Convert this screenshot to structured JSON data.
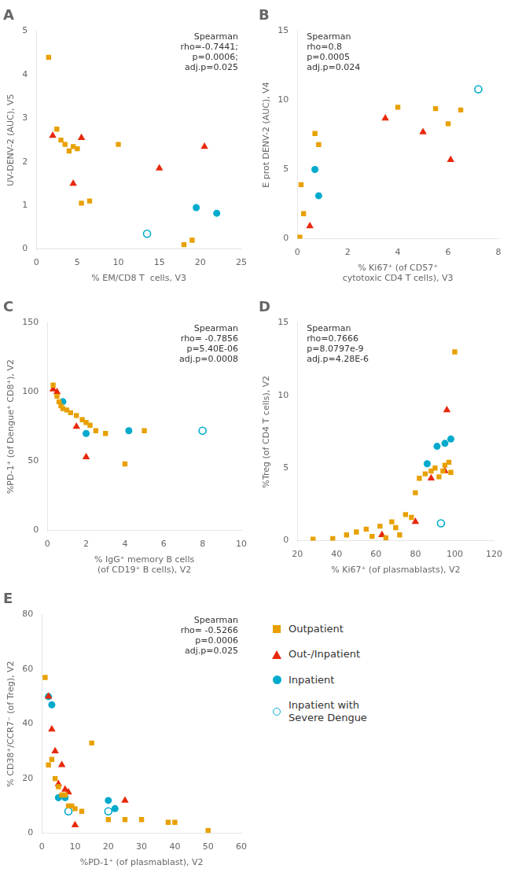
{
  "chart_data": [
    {
      "type": "scatter",
      "title": "A",
      "xlabel": "% EM/CD8 T  cells, V3",
      "ylabel": "UV-DENV-2 (AUC), V5",
      "xlim": [
        0,
        25
      ],
      "ylim": [
        0,
        5
      ],
      "xticks": [
        0,
        5,
        10,
        15,
        20,
        25
      ],
      "yticks": [
        0,
        1,
        2,
        3,
        4,
        5
      ],
      "grid": false,
      "annotation": "Spearman\nrho=-0.7441;\np=0.0006;\nadj.p=0.025",
      "series": [
        {
          "name": "Outpatient",
          "color": "#E8A000",
          "marker": "square",
          "values": [
            [
              1.5,
              4.4
            ],
            [
              2.5,
              2.75
            ],
            [
              3.0,
              2.5
            ],
            [
              3.5,
              2.4
            ],
            [
              4.0,
              2.25
            ],
            [
              4.5,
              2.35
            ],
            [
              5.0,
              2.3
            ],
            [
              5.5,
              1.05
            ],
            [
              6.5,
              1.1
            ],
            [
              10.0,
              2.4
            ],
            [
              18.0,
              0.1
            ],
            [
              19.0,
              0.2
            ]
          ]
        },
        {
          "name": "Out-/Inpatient",
          "color": "#E8280A",
          "marker": "triangle",
          "values": [
            [
              2.0,
              2.6
            ],
            [
              4.5,
              1.5
            ],
            [
              5.5,
              2.55
            ],
            [
              15.0,
              1.85
            ],
            [
              20.5,
              2.35
            ]
          ]
        },
        {
          "name": "Inpatient",
          "color": "#00AACC",
          "marker": "circle",
          "values": [
            [
              19.5,
              0.95
            ],
            [
              22.0,
              0.82
            ]
          ]
        },
        {
          "name": "Inpatient with\nSevere Dengue",
          "color": "#00AACC",
          "marker": "open_circle",
          "values": [
            [
              13.5,
              0.35
            ]
          ]
        }
      ]
    },
    {
      "type": "scatter",
      "title": "B",
      "xlabel": "% Ki67⁺ (of CD57⁺\ncytotoxic CD4 T cells), V3",
      "ylabel": "E prot DENV-2 (AUC), V4",
      "xlim": [
        0,
        8
      ],
      "ylim": [
        0,
        15
      ],
      "xticks": [
        0,
        2,
        4,
        6,
        8
      ],
      "yticks": [
        0,
        5,
        10,
        15
      ],
      "grid": false,
      "annotation": "Spearman\nrho=0.8\np=0.0005\nadj.p=0.024",
      "series": [
        {
          "name": "Outpatient",
          "color": "#E8A000",
          "marker": "square",
          "values": [
            [
              0.15,
              3.9
            ],
            [
              0.25,
              1.8
            ],
            [
              0.7,
              7.6
            ],
            [
              0.85,
              6.8
            ],
            [
              0.1,
              0.1
            ],
            [
              4.0,
              9.5
            ],
            [
              5.5,
              9.4
            ],
            [
              6.0,
              8.3
            ],
            [
              6.5,
              9.3
            ]
          ]
        },
        {
          "name": "Out-/Inpatient",
          "color": "#E8280A",
          "marker": "triangle",
          "values": [
            [
              0.5,
              0.9
            ],
            [
              3.5,
              8.7
            ],
            [
              5.0,
              7.7
            ],
            [
              6.1,
              5.7
            ]
          ]
        },
        {
          "name": "Inpatient",
          "color": "#00AACC",
          "marker": "circle",
          "values": [
            [
              0.7,
              5.0
            ],
            [
              0.85,
              3.1
            ]
          ]
        },
        {
          "name": "Inpatient with\nSevere Dengue",
          "color": "#00AACC",
          "marker": "open_circle",
          "values": [
            [
              7.2,
              10.8
            ]
          ]
        }
      ]
    },
    {
      "type": "scatter",
      "title": "C",
      "xlabel": "% IgG⁺ memory B cells\n(of CD19⁺ B cells), V2",
      "ylabel": "%PD-1⁺ (of Dengue⁺ CD8⁺), V2",
      "xlim": [
        0,
        10
      ],
      "ylim": [
        0,
        150
      ],
      "xticks": [
        0,
        2,
        4,
        6,
        8,
        10
      ],
      "yticks": [
        0,
        50,
        100,
        150
      ],
      "grid": false,
      "annotation": "Spearman\nrho= -0.7856\np=5.40E-06\nadj.p=0.0008",
      "series": [
        {
          "name": "Outpatient",
          "color": "#E8A000",
          "marker": "square",
          "values": [
            [
              0.3,
              105
            ],
            [
              0.5,
              97
            ],
            [
              0.6,
              93
            ],
            [
              0.7,
              90
            ],
            [
              0.8,
              88
            ],
            [
              1.0,
              87
            ],
            [
              1.2,
              85
            ],
            [
              1.5,
              83
            ],
            [
              1.8,
              80
            ],
            [
              2.0,
              78
            ],
            [
              2.2,
              76
            ],
            [
              2.5,
              72
            ],
            [
              3.0,
              70
            ],
            [
              4.0,
              48
            ],
            [
              5.0,
              72
            ]
          ]
        },
        {
          "name": "Out-/Inpatient",
          "color": "#E8280A",
          "marker": "triangle",
          "values": [
            [
              0.3,
              102
            ],
            [
              0.5,
              100
            ],
            [
              1.5,
              75
            ],
            [
              2.0,
              53
            ]
          ]
        },
        {
          "name": "Inpatient",
          "color": "#00AACC",
          "marker": "circle",
          "values": [
            [
              0.8,
              93
            ],
            [
              2.0,
              70
            ],
            [
              4.2,
              72
            ]
          ]
        },
        {
          "name": "Inpatient with\nSevere Dengue",
          "color": "#00AACC",
          "marker": "open_circle",
          "values": [
            [
              8.0,
              72
            ]
          ]
        }
      ]
    },
    {
      "type": "scatter",
      "title": "D",
      "xlabel": "% Ki67⁺ (of plasmablasts), V2",
      "ylabel": "%Treg (of CD4 T cells), V2",
      "xlim": [
        20,
        120
      ],
      "ylim": [
        0,
        15
      ],
      "xticks": [
        20,
        40,
        60,
        80,
        100,
        120
      ],
      "yticks": [
        0,
        5,
        10,
        15
      ],
      "grid": false,
      "annotation": "Spearman\nrho=0.7666\np=8.0797e-9\nadj.p=4.28E-6",
      "series": [
        {
          "name": "Outpatient",
          "color": "#E8A000",
          "marker": "square",
          "values": [
            [
              28,
              0.1
            ],
            [
              38,
              0.15
            ],
            [
              45,
              0.4
            ],
            [
              50,
              0.6
            ],
            [
              55,
              0.8
            ],
            [
              58,
              0.3
            ],
            [
              62,
              1.0
            ],
            [
              65,
              0.2
            ],
            [
              68,
              1.3
            ],
            [
              70,
              0.9
            ],
            [
              72,
              0.4
            ],
            [
              75,
              1.8
            ],
            [
              78,
              1.6
            ],
            [
              80,
              3.3
            ],
            [
              82,
              4.3
            ],
            [
              85,
              4.6
            ],
            [
              88,
              4.8
            ],
            [
              90,
              5.0
            ],
            [
              92,
              4.4
            ],
            [
              94,
              4.8
            ],
            [
              95,
              5.2
            ],
            [
              97,
              5.4
            ],
            [
              98,
              4.7
            ],
            [
              100,
              13.0
            ]
          ]
        },
        {
          "name": "Out-/Inpatient",
          "color": "#E8280A",
          "marker": "triangle",
          "values": [
            [
              63,
              0.4
            ],
            [
              80,
              1.3
            ],
            [
              88,
              4.3
            ],
            [
              95,
              4.8
            ],
            [
              96,
              9.0
            ]
          ]
        },
        {
          "name": "Inpatient",
          "color": "#00AACC",
          "marker": "circle",
          "values": [
            [
              86,
              5.3
            ],
            [
              91,
              6.5
            ],
            [
              95,
              6.7
            ],
            [
              98,
              7.0
            ]
          ]
        },
        {
          "name": "Inpatient with\nSevere Dengue",
          "color": "#00AACC",
          "marker": "open_circle",
          "values": [
            [
              93,
              1.2
            ]
          ]
        }
      ]
    },
    {
      "type": "scatter",
      "title": "E",
      "xlabel": "%PD-1⁺ (of plasmablast), V2",
      "ylabel": "% CD38⁺/CCR7⁻ (of Treg), V2",
      "xlim": [
        0,
        60
      ],
      "ylim": [
        0,
        80
      ],
      "xticks": [
        0,
        10,
        20,
        30,
        40,
        50,
        60
      ],
      "yticks": [
        0,
        20,
        40,
        60,
        80
      ],
      "grid": false,
      "annotation": "Spearman\nrho= -0.5266\np=0.0006\nadj.p=0.025",
      "series": [
        {
          "name": "Outpatient",
          "color": "#E8A000",
          "marker": "square",
          "values": [
            [
              1,
              57
            ],
            [
              2,
              25
            ],
            [
              3,
              27
            ],
            [
              4,
              20
            ],
            [
              5,
              17
            ],
            [
              6,
              14
            ],
            [
              7,
              14
            ],
            [
              8,
              10
            ],
            [
              9,
              10
            ],
            [
              10,
              9
            ],
            [
              12,
              8
            ],
            [
              15,
              33
            ],
            [
              20,
              5
            ],
            [
              25,
              5
            ],
            [
              30,
              5
            ],
            [
              38,
              4
            ],
            [
              40,
              4
            ],
            [
              50,
              1
            ]
          ]
        },
        {
          "name": "Out-/Inpatient",
          "color": "#E8280A",
          "marker": "triangle",
          "values": [
            [
              2,
              50
            ],
            [
              3,
              38
            ],
            [
              4,
              30
            ],
            [
              5,
              18
            ],
            [
              6,
              25
            ],
            [
              7,
              16
            ],
            [
              8,
              15
            ],
            [
              10,
              3
            ],
            [
              25,
              12
            ]
          ]
        },
        {
          "name": "Inpatient",
          "color": "#00AACC",
          "marker": "circle",
          "values": [
            [
              2,
              50
            ],
            [
              3,
              47
            ],
            [
              5,
              13
            ],
            [
              7,
              13
            ],
            [
              20,
              12
            ],
            [
              22,
              9
            ]
          ]
        },
        {
          "name": "Inpatient with\nSevere Dengue",
          "color": "#00AACC",
          "marker": "open_circle",
          "values": [
            [
              8,
              8
            ],
            [
              20,
              8
            ]
          ]
        }
      ]
    }
  ]
}
